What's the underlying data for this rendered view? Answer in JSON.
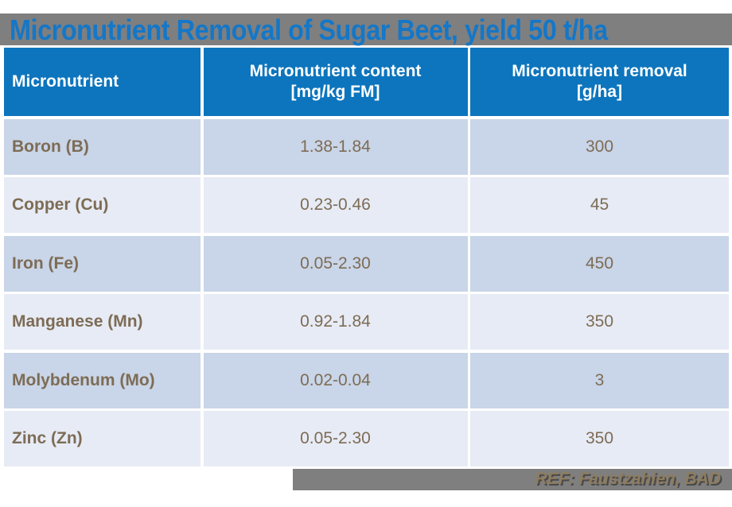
{
  "title": "Micronutrient Removal of Sugar Beet, yield 50 t/ha",
  "colors": {
    "title_blue": "#1477c8",
    "header_bg": "#0d75bd",
    "band_gray": "#7f7f7f",
    "row_dark": "#c9d5e8",
    "row_light": "#e7ebf5",
    "cell_text": "#7d6c55",
    "footer_text": "#8d7c5f"
  },
  "table": {
    "columns": [
      {
        "label": "Micronutrient",
        "unit": ""
      },
      {
        "label": "Micronutrient content",
        "unit": "[mg/kg FM]"
      },
      {
        "label": "Micronutrient removal",
        "unit": "[g/ha]"
      }
    ],
    "rows": [
      {
        "name": "Boron (B)",
        "content": "1.38-1.84",
        "removal": "300"
      },
      {
        "name": "Copper (Cu)",
        "content": "0.23-0.46",
        "removal": "45"
      },
      {
        "name": "Iron (Fe)",
        "content": "0.05-2.30",
        "removal": "450"
      },
      {
        "name": "Manganese (Mn)",
        "content": "0.92-1.84",
        "removal": "350"
      },
      {
        "name": "Molybdenum (Mo)",
        "content": "0.02-0.04",
        "removal": "3"
      },
      {
        "name": "Zinc (Zn)",
        "content": "0.05-2.30",
        "removal": "350"
      }
    ]
  },
  "footer": {
    "ref": "REF: Faustzahien, BAD"
  },
  "chart_data": {
    "type": "table",
    "title": "Micronutrient Removal of Sugar Beet, yield 50 t/ha",
    "columns": [
      "Micronutrient",
      "Micronutrient content [mg/kg FM]",
      "Micronutrient removal [g/ha]"
    ],
    "rows": [
      [
        "Boron (B)",
        "1.38-1.84",
        300
      ],
      [
        "Copper (Cu)",
        "0.23-0.46",
        45
      ],
      [
        "Iron (Fe)",
        "0.05-2.30",
        450
      ],
      [
        "Manganese (Mn)",
        "0.92-1.84",
        350
      ],
      [
        "Molybdenum (Mo)",
        "0.02-0.04",
        3
      ],
      [
        "Zinc (Zn)",
        "0.05-2.30",
        350
      ]
    ],
    "removal_unit": "g/ha",
    "content_unit": "mg/kg FM",
    "yield": "50 t/ha"
  }
}
